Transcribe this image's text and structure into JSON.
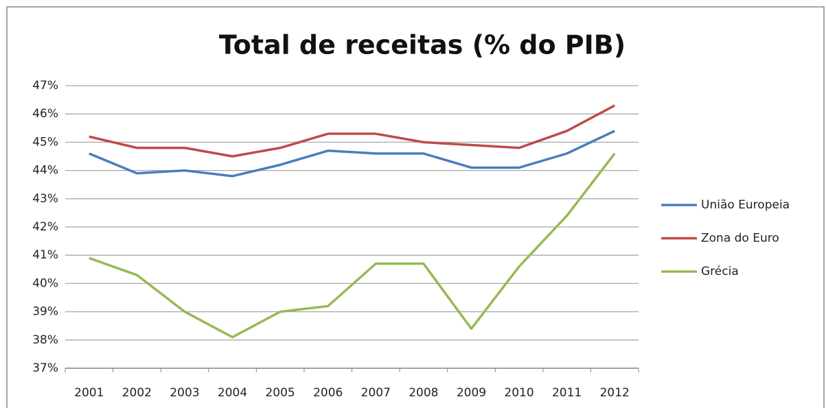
{
  "chart_data": {
    "type": "line",
    "title": "Total de receitas (% do PIB)",
    "categories": [
      "2001",
      "2002",
      "2003",
      "2004",
      "2005",
      "2006",
      "2007",
      "2008",
      "2009",
      "2010",
      "2011",
      "2012"
    ],
    "series": [
      {
        "name": "União Europeia",
        "color": "#4a7ebb",
        "values": [
          44.6,
          43.9,
          44.0,
          43.8,
          44.2,
          44.7,
          44.6,
          44.6,
          44.1,
          44.1,
          44.6,
          45.4
        ]
      },
      {
        "name": "Zona do Euro",
        "color": "#be4b48",
        "values": [
          45.2,
          44.8,
          44.8,
          44.5,
          44.8,
          45.3,
          45.3,
          45.0,
          44.9,
          44.8,
          45.4,
          46.3
        ]
      },
      {
        "name": "Grécia",
        "color": "#98b954",
        "values": [
          40.9,
          40.3,
          39.0,
          38.1,
          39.0,
          39.2,
          40.7,
          40.7,
          38.4,
          40.6,
          42.4,
          44.6
        ]
      }
    ],
    "ylim": [
      37,
      47
    ],
    "yticks": [
      {
        "value": 37,
        "label": "37%"
      },
      {
        "value": 38,
        "label": "38%"
      },
      {
        "value": 39,
        "label": "39%"
      },
      {
        "value": 40,
        "label": "40%"
      },
      {
        "value": 41,
        "label": "41%"
      },
      {
        "value": 42,
        "label": "42%"
      },
      {
        "value": 43,
        "label": "43%"
      },
      {
        "value": 44,
        "label": "44%"
      },
      {
        "value": 45,
        "label": "45%"
      },
      {
        "value": 46,
        "label": "46%"
      },
      {
        "value": 47,
        "label": "47%"
      }
    ],
    "grid": true,
    "legend": "right"
  }
}
